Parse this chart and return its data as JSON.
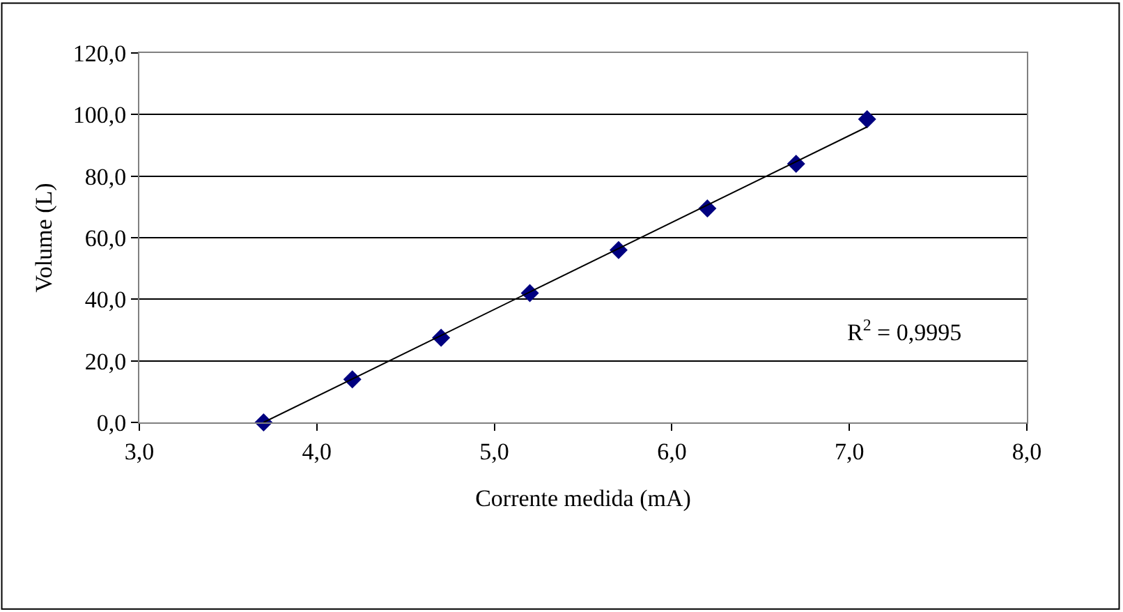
{
  "chart_data": {
    "type": "scatter",
    "xlabel": "Corrente medida (mA)",
    "ylabel": "Volume (L)",
    "x": [
      3.7,
      4.2,
      4.7,
      5.2,
      5.7,
      6.2,
      6.7,
      7.1
    ],
    "series": [
      {
        "color": "#000080",
        "values": [
          0,
          14,
          27.5,
          42,
          56,
          69.5,
          84,
          98.5
        ],
        "marker": "diamond"
      },
      {
        "type": "line",
        "color": "#000000",
        "x": [
          3.7,
          7.1
        ],
        "values": [
          0,
          96
        ],
        "marker": "none",
        "line_style": "solid"
      }
    ],
    "xlim": [
      3,
      8
    ],
    "xticks": [
      {
        "value": 3,
        "label": "3,0"
      },
      {
        "value": 4,
        "label": "4,0"
      },
      {
        "value": 5,
        "label": "5,0"
      },
      {
        "value": 6,
        "label": "6,0"
      },
      {
        "value": 7,
        "label": "7,0"
      },
      {
        "value": 8,
        "label": "8,0"
      }
    ],
    "ylim": [
      0,
      120
    ],
    "yticks": [
      {
        "value": 0,
        "label": "0,0"
      },
      {
        "value": 20,
        "label": "20,0"
      },
      {
        "value": 40,
        "label": "40,0"
      },
      {
        "value": 60,
        "label": "60,0"
      },
      {
        "value": 80,
        "label": "80,0"
      },
      {
        "value": 100,
        "label": "100,0"
      },
      {
        "value": 120,
        "label": "120,0"
      }
    ],
    "grid": "y",
    "annotations": [
      "R$^{2}$ = 0,9995"
    ]
  }
}
